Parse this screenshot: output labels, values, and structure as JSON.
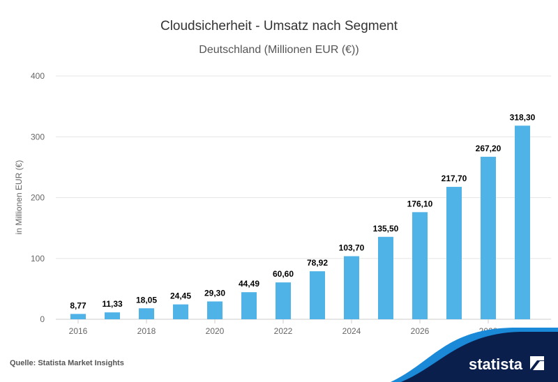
{
  "chart_data": {
    "type": "bar",
    "title": "Cloudsicherheit - Umsatz nach Segment",
    "subtitle": "Deutschland (Millionen EUR (€))",
    "xlabel": "",
    "ylabel": "in Millionen EUR (€)",
    "categories": [
      "2016",
      "2017",
      "2018",
      "2019",
      "2020",
      "2021",
      "2022",
      "2023",
      "2024",
      "2025",
      "2026",
      "2027",
      "2028",
      "2029"
    ],
    "values": [
      8.77,
      11.33,
      18.05,
      24.45,
      29.3,
      44.49,
      60.6,
      78.92,
      103.7,
      135.5,
      176.1,
      217.7,
      267.2,
      318.3
    ],
    "data_labels": [
      "8,77",
      "11,33",
      "18,05",
      "24,45",
      "29,30",
      "44,49",
      "60,60",
      "78,92",
      "103,70",
      "135,50",
      "176,10",
      "217,70",
      "267,20",
      "318,30"
    ],
    "x_tick_labels": [
      "2016",
      "2018",
      "2020",
      "2022",
      "2024",
      "2026",
      "2028"
    ],
    "y_ticks": [
      0,
      100,
      200,
      300,
      400
    ],
    "ylim": [
      0,
      400
    ],
    "grid": true,
    "legend": "none",
    "bar_color": "#4fb3e8"
  },
  "footer": {
    "source": "Quelle: Statista Market Insights",
    "logo_text": "statista"
  }
}
